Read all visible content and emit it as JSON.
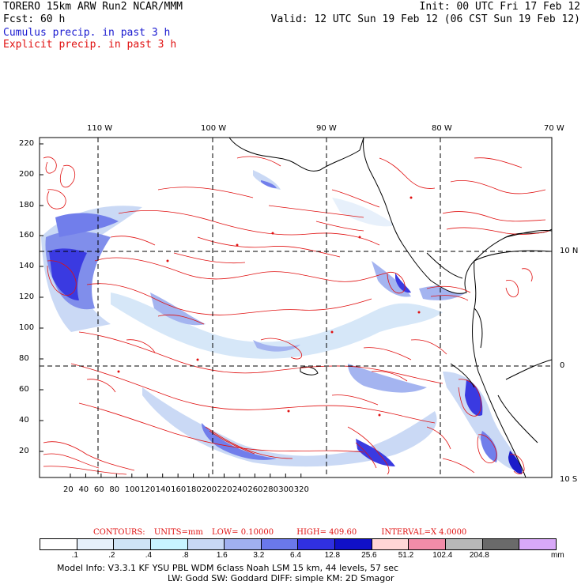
{
  "header": {
    "model": "TORERO  15km ARW   Run2   NCAR/MMM",
    "init": "Init: 00 UTC Fri 17 Feb 12",
    "fcst": "Fcst:   60 h",
    "valid": "Valid: 12 UTC Sun 19 Feb 12 (06 CST Sun 19 Feb 12)",
    "cumulus": "Cumulus precip. in past 3 h",
    "explicit": "Explicit precip. in past 3 h"
  },
  "map": {
    "lon_labels": [
      "110 W",
      "100 W",
      "90 W",
      "80 W",
      "70 W"
    ],
    "lat_labels": [
      "10 N",
      "0",
      "10 S"
    ],
    "y_ticks": [
      "220",
      "200",
      "180",
      "160",
      "140",
      "120",
      "100",
      "80",
      "60",
      "40",
      "20"
    ],
    "x_ticks": [
      "20",
      "40",
      "60",
      "80",
      "100",
      "120",
      "140",
      "160",
      "180",
      "200",
      "220",
      "240",
      "260",
      "280",
      "300",
      "320"
    ],
    "colors": {
      "contour": "#e01010",
      "coast": "#000000",
      "frame": "#000000"
    }
  },
  "contours_info": {
    "label": "CONTOURS:",
    "units": "UNITS=mm",
    "low": "LOW= 0.10000",
    "high": "HIGH=  409.60",
    "interval": "INTERVAL=X  4.0000"
  },
  "colorbar": {
    "labels": [
      ".1",
      ".2",
      ".4",
      ".8",
      "1.6",
      "3.2",
      "6.4",
      "12.8",
      "25.6",
      "51.2",
      "102.4",
      "204.8"
    ],
    "unit": "mm",
    "colors": [
      "#ffffff",
      "#e6f0fb",
      "#cfe4f6",
      "#c8f4ff",
      "#c8d8f5",
      "#a0b0f0",
      "#6a78ea",
      "#3030e0",
      "#1010c8",
      "#ffd6d6",
      "#f28ca8",
      "#b8b8b8",
      "#6a6a6a",
      "#2a2a2a",
      "#d8a8f8"
    ]
  },
  "footer": {
    "line1": "Model Info: V3.3.1    KF     YSU PBL   WDM 6class  Noah LSM  15 km,   44 levels,   57 sec",
    "line2": "LW: Godd SW: Goddard DIFF: simple KM: 2D Smagor"
  }
}
